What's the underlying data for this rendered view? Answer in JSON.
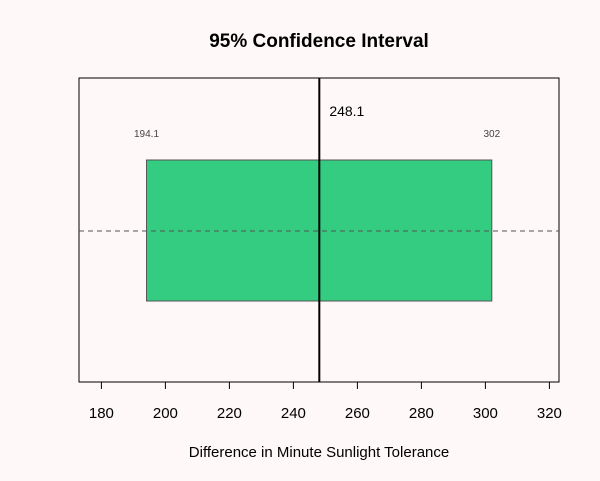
{
  "chart_data": {
    "type": "interval",
    "title": "95% Confidence Interval",
    "xlabel": "Difference in Minute Sunlight Tolerance",
    "ylabel": "",
    "xlim": [
      173,
      323
    ],
    "x_ticks": [
      180,
      200,
      220,
      240,
      260,
      280,
      300,
      320
    ],
    "x_tick_labels": [
      "180",
      "200",
      "220",
      "240",
      "260",
      "280",
      "300",
      "320"
    ],
    "interval": {
      "lower": 194.1,
      "upper": 302,
      "estimate": 248.1,
      "lower_label": "194.1",
      "upper_label": "302",
      "estimate_label": "248.1"
    },
    "reference_line": "dashed horizontal",
    "grid": false,
    "colors": {
      "background": "#fff8f8",
      "interval_fill": "#33cc80",
      "interval_border": "#555555",
      "estimate_line": "#000000",
      "dashed_line": "#555555"
    }
  }
}
